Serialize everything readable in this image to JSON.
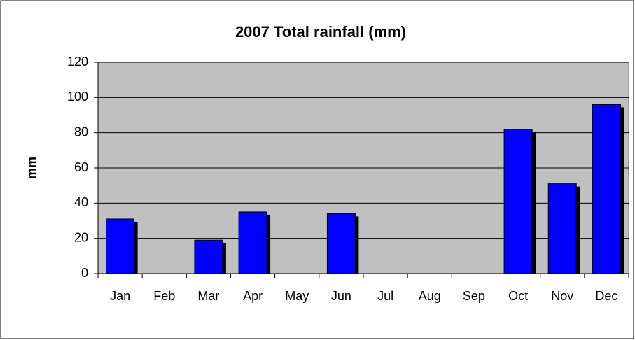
{
  "chart_data": {
    "type": "bar",
    "title": "2007 Total rainfall (mm)",
    "y_label": "mm",
    "categories": [
      "Jan",
      "Feb",
      "Mar",
      "Apr",
      "May",
      "Jun",
      "Jul",
      "Aug",
      "Sep",
      "Oct",
      "Nov",
      "Dec"
    ],
    "values": [
      31,
      0,
      19,
      35,
      0,
      34,
      0,
      0,
      0,
      82,
      51,
      96
    ],
    "color": "#0000ff",
    "ylim": [
      0,
      120
    ],
    "yticks": [
      0,
      20,
      40,
      60,
      80,
      100,
      120
    ],
    "grid": true
  }
}
